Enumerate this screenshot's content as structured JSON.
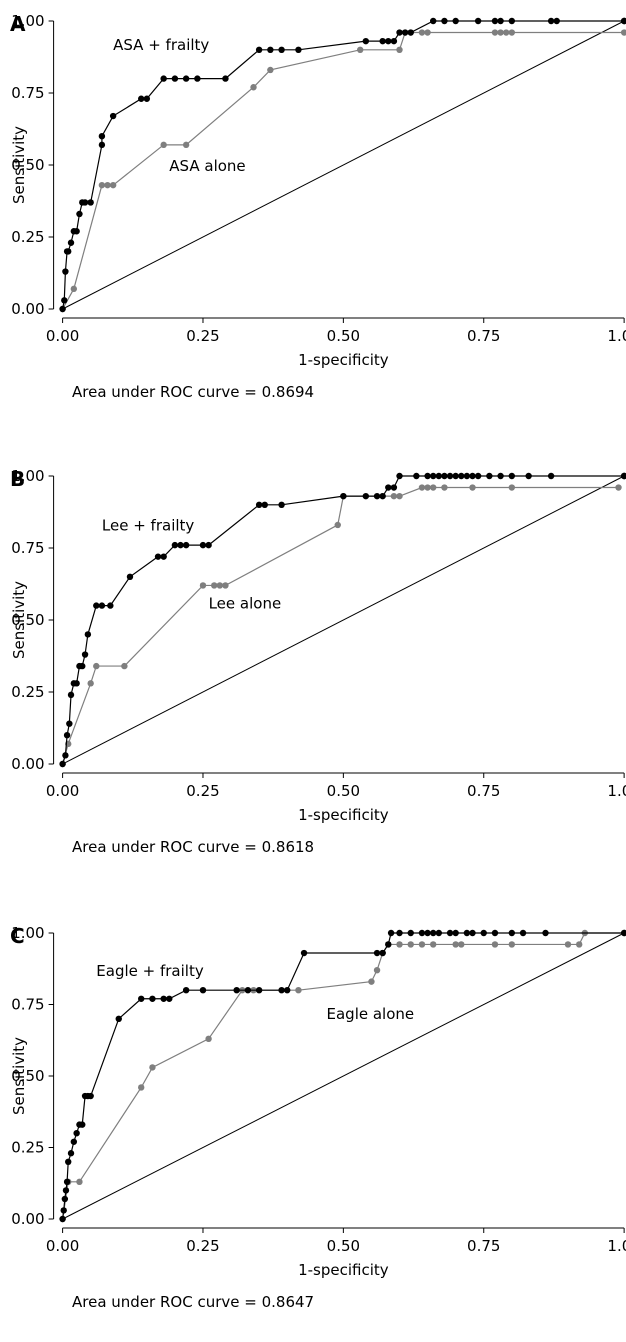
{
  "chart_data": [
    {
      "type": "line",
      "panel_label": "A",
      "xlabel": "1-specificity",
      "ylabel": "Sensitivity",
      "xlim": [
        0,
        1
      ],
      "ylim": [
        0,
        1
      ],
      "x_ticks": [
        "0.00",
        "0.25",
        "0.50",
        "0.75",
        "1.00"
      ],
      "y_ticks": [
        "0.00",
        "0.25",
        "0.50",
        "0.75",
        "1.00"
      ],
      "grid": false,
      "legend": "none",
      "auc_text": "Area under ROC curve = 0.8694",
      "series": [
        {
          "label": "ASA + frailty",
          "color": "#000000",
          "x": [
            0.0,
            0.003,
            0.005,
            0.008,
            0.01,
            0.015,
            0.02,
            0.025,
            0.03,
            0.035,
            0.04,
            0.05,
            0.07,
            0.07,
            0.09,
            0.14,
            0.15,
            0.18,
            0.2,
            0.22,
            0.24,
            0.29,
            0.35,
            0.37,
            0.39,
            0.42,
            0.54,
            0.57,
            0.58,
            0.59,
            0.6,
            0.61,
            0.62,
            0.66,
            0.68,
            0.7,
            0.74,
            0.77,
            0.78,
            0.8,
            0.87,
            0.88,
            1.0,
            1.0
          ],
          "y": [
            0.0,
            0.03,
            0.13,
            0.2,
            0.2,
            0.23,
            0.27,
            0.27,
            0.33,
            0.37,
            0.37,
            0.37,
            0.57,
            0.6,
            0.67,
            0.73,
            0.73,
            0.8,
            0.8,
            0.8,
            0.8,
            0.8,
            0.9,
            0.9,
            0.9,
            0.9,
            0.93,
            0.93,
            0.93,
            0.93,
            0.96,
            0.96,
            0.96,
            1.0,
            1.0,
            1.0,
            1.0,
            1.0,
            1.0,
            1.0,
            1.0,
            1.0,
            1.0,
            1.0
          ]
        },
        {
          "label": "ASA alone",
          "color": "#7f7f7f",
          "x": [
            0.0,
            0.02,
            0.07,
            0.08,
            0.09,
            0.18,
            0.22,
            0.34,
            0.37,
            0.53,
            0.6,
            0.61,
            0.62,
            0.64,
            0.65,
            0.77,
            0.78,
            0.79,
            0.8,
            1.0
          ],
          "y": [
            0.0,
            0.07,
            0.43,
            0.43,
            0.43,
            0.57,
            0.57,
            0.77,
            0.83,
            0.9,
            0.9,
            0.96,
            0.96,
            0.96,
            0.96,
            0.96,
            0.96,
            0.96,
            0.96,
            0.96
          ]
        }
      ]
    },
    {
      "type": "line",
      "panel_label": "B",
      "xlabel": "1-specificity",
      "ylabel": "Sensitivity",
      "xlim": [
        0,
        1
      ],
      "ylim": [
        0,
        1
      ],
      "x_ticks": [
        "0.00",
        "0.25",
        "0.50",
        "0.75",
        "1.00"
      ],
      "y_ticks": [
        "0.00",
        "0.25",
        "0.50",
        "0.75",
        "1.00"
      ],
      "grid": false,
      "legend": "none",
      "auc_text": "Area under ROC curve = 0.8618",
      "series": [
        {
          "label": "Lee + frailty",
          "color": "#000000",
          "x": [
            0.0,
            0.005,
            0.008,
            0.012,
            0.015,
            0.02,
            0.025,
            0.03,
            0.035,
            0.04,
            0.045,
            0.06,
            0.07,
            0.085,
            0.12,
            0.17,
            0.18,
            0.2,
            0.21,
            0.22,
            0.25,
            0.26,
            0.35,
            0.36,
            0.39,
            0.5,
            0.54,
            0.56,
            0.57,
            0.58,
            0.59,
            0.6,
            0.63,
            0.65,
            0.66,
            0.67,
            0.68,
            0.69,
            0.7,
            0.71,
            0.72,
            0.73,
            0.74,
            0.76,
            0.78,
            0.8,
            0.83,
            0.87,
            1.0,
            1.0
          ],
          "y": [
            0.0,
            0.03,
            0.1,
            0.14,
            0.24,
            0.28,
            0.28,
            0.34,
            0.34,
            0.38,
            0.45,
            0.55,
            0.55,
            0.55,
            0.65,
            0.72,
            0.72,
            0.76,
            0.76,
            0.76,
            0.76,
            0.76,
            0.9,
            0.9,
            0.9,
            0.93,
            0.93,
            0.93,
            0.93,
            0.96,
            0.96,
            1.0,
            1.0,
            1.0,
            1.0,
            1.0,
            1.0,
            1.0,
            1.0,
            1.0,
            1.0,
            1.0,
            1.0,
            1.0,
            1.0,
            1.0,
            1.0,
            1.0,
            1.0,
            1.0
          ]
        },
        {
          "label": "Lee alone",
          "color": "#7f7f7f",
          "x": [
            0.0,
            0.01,
            0.05,
            0.06,
            0.11,
            0.25,
            0.27,
            0.28,
            0.29,
            0.49,
            0.5,
            0.59,
            0.6,
            0.64,
            0.65,
            0.66,
            0.68,
            0.73,
            0.8,
            0.99
          ],
          "y": [
            0.0,
            0.07,
            0.28,
            0.34,
            0.34,
            0.62,
            0.62,
            0.62,
            0.62,
            0.83,
            0.93,
            0.93,
            0.93,
            0.96,
            0.96,
            0.96,
            0.96,
            0.96,
            0.96,
            0.96
          ]
        }
      ]
    },
    {
      "type": "line",
      "panel_label": "C",
      "xlabel": "1-specificity",
      "ylabel": "Sensitivity",
      "xlim": [
        0,
        1
      ],
      "ylim": [
        0,
        1
      ],
      "x_ticks": [
        "0.00",
        "0.25",
        "0.50",
        "0.75",
        "1.00"
      ],
      "y_ticks": [
        "0.00",
        "0.25",
        "0.50",
        "0.75",
        "1.00"
      ],
      "grid": false,
      "legend": "none",
      "auc_text": "Area under ROC curve = 0.8647",
      "series": [
        {
          "label": "Eagle + frailty",
          "color": "#000000",
          "x": [
            0.0,
            0.002,
            0.004,
            0.006,
            0.008,
            0.01,
            0.015,
            0.02,
            0.025,
            0.03,
            0.035,
            0.04,
            0.045,
            0.05,
            0.1,
            0.14,
            0.16,
            0.18,
            0.19,
            0.22,
            0.25,
            0.31,
            0.33,
            0.35,
            0.39,
            0.4,
            0.43,
            0.56,
            0.57,
            0.58,
            0.585,
            0.6,
            0.62,
            0.64,
            0.65,
            0.66,
            0.67,
            0.69,
            0.7,
            0.72,
            0.73,
            0.75,
            0.77,
            0.8,
            0.82,
            0.86,
            1.0
          ],
          "y": [
            0.0,
            0.03,
            0.07,
            0.1,
            0.13,
            0.2,
            0.23,
            0.27,
            0.3,
            0.33,
            0.33,
            0.43,
            0.43,
            0.43,
            0.7,
            0.77,
            0.77,
            0.77,
            0.77,
            0.8,
            0.8,
            0.8,
            0.8,
            0.8,
            0.8,
            0.8,
            0.93,
            0.93,
            0.93,
            0.96,
            1.0,
            1.0,
            1.0,
            1.0,
            1.0,
            1.0,
            1.0,
            1.0,
            1.0,
            1.0,
            1.0,
            1.0,
            1.0,
            1.0,
            1.0,
            1.0,
            1.0
          ]
        },
        {
          "label": "Eagle alone",
          "color": "#7f7f7f",
          "x": [
            0.0,
            0.01,
            0.03,
            0.14,
            0.16,
            0.26,
            0.32,
            0.34,
            0.42,
            0.55,
            0.56,
            0.57,
            0.58,
            0.6,
            0.62,
            0.64,
            0.66,
            0.7,
            0.71,
            0.77,
            0.8,
            0.9,
            0.92,
            0.93,
            1.0
          ],
          "y": [
            0.0,
            0.13,
            0.13,
            0.46,
            0.53,
            0.63,
            0.8,
            0.8,
            0.8,
            0.83,
            0.87,
            0.93,
            0.96,
            0.96,
            0.96,
            0.96,
            0.96,
            0.96,
            0.96,
            0.96,
            0.96,
            0.96,
            0.96,
            1.0,
            1.0
          ]
        }
      ]
    }
  ]
}
